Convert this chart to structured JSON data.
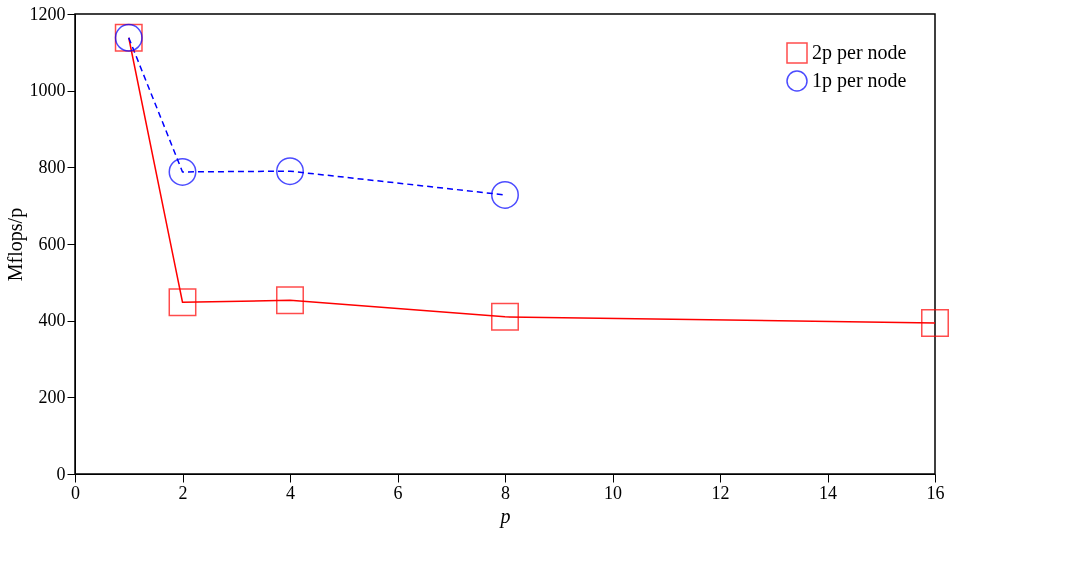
{
  "chart_data": {
    "type": "line",
    "xlabel": "p",
    "ylabel": "Mflops/p",
    "xlim": [
      0,
      16
    ],
    "xticks": [
      0,
      2,
      4,
      6,
      8,
      10,
      12,
      14,
      16
    ],
    "ylim": [
      0,
      1200
    ],
    "yticks": [
      0,
      200,
      400,
      600,
      800,
      1000,
      1200
    ],
    "grid": false,
    "legend": "top right",
    "series": [
      {
        "name": "2p per node",
        "color": "#ff0000",
        "marker": "square",
        "line_style": "solid",
        "x": [
          1,
          2,
          4,
          8,
          16
        ],
        "values": [
          1138,
          448,
          453,
          410,
          394
        ]
      },
      {
        "name": "1p per node",
        "color": "#0000ff",
        "marker": "circle",
        "line_style": "dashed",
        "x": [
          1,
          2,
          4,
          8
        ],
        "values": [
          1138,
          788,
          790,
          728
        ]
      }
    ]
  }
}
